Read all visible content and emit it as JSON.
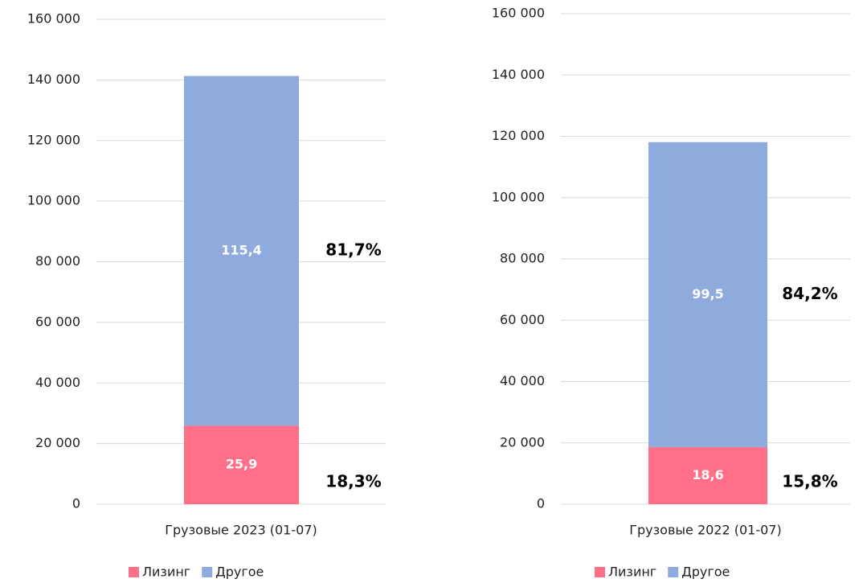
{
  "chart_data": [
    {
      "type": "bar",
      "stacked": true,
      "categories": [
        "Грузовые 2023 (01-07)"
      ],
      "series": [
        {
          "name": "Лизинг",
          "color": "#ff7088",
          "values": [
            25900
          ],
          "value_labels": [
            "25,9"
          ]
        },
        {
          "name": "Другое",
          "color": "#8faadc",
          "values": [
            115400
          ],
          "value_labels": [
            "115,4"
          ]
        }
      ],
      "share_labels": [
        "18,3%",
        "81,7%"
      ],
      "ylim": [
        0,
        160000
      ],
      "yticks": [
        0,
        {
          "value": 20000,
          "label": "20 000"
        },
        {
          "value": 40000,
          "label": "40 000"
        },
        {
          "value": 60000,
          "label": "60 000"
        },
        {
          "value": 80000,
          "label": "80 000"
        },
        {
          "value": 100000,
          "label": "100 000"
        },
        {
          "value": 120000,
          "label": "120 000"
        },
        {
          "value": 140000,
          "label": "140 000"
        },
        {
          "value": 160000,
          "label": "160 000"
        }
      ],
      "grid": true,
      "legend": "bottom"
    },
    {
      "type": "bar",
      "stacked": true,
      "categories": [
        "Грузовые 2022 (01-07)"
      ],
      "series": [
        {
          "name": "Лизинг",
          "color": "#ff7088",
          "values": [
            18600
          ],
          "value_labels": [
            "18,6"
          ]
        },
        {
          "name": "Другое",
          "color": "#8faadc",
          "values": [
            99500
          ],
          "value_labels": [
            "99,5"
          ]
        }
      ],
      "share_labels": [
        "15,8%",
        "84,2%"
      ],
      "ylim": [
        0,
        160000
      ],
      "yticks": [
        0,
        {
          "value": 20000,
          "label": "20 000"
        },
        {
          "value": 40000,
          "label": "40 000"
        },
        {
          "value": 60000,
          "label": "60 000"
        },
        {
          "value": 80000,
          "label": "80 000"
        },
        {
          "value": 100000,
          "label": "100 000"
        },
        {
          "value": 120000,
          "label": "120 000"
        },
        {
          "value": 140000,
          "label": "140 000"
        },
        {
          "value": 160000,
          "label": "160 000"
        }
      ],
      "grid": true,
      "legend": "bottom"
    }
  ]
}
